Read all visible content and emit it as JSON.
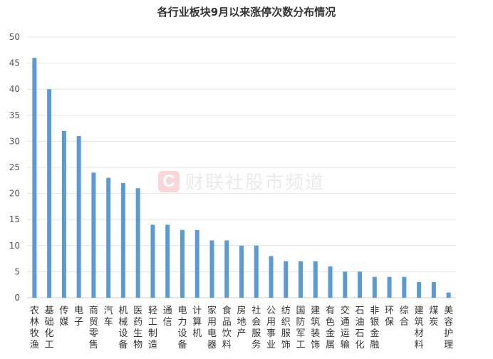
{
  "chart_data": {
    "type": "bar",
    "title": "各行业板块9月以来涨停次数分布情况",
    "xlabel": "",
    "ylabel": "",
    "ylim": [
      0,
      50
    ],
    "yticks": [
      0,
      5,
      10,
      15,
      20,
      25,
      30,
      35,
      40,
      45,
      50
    ],
    "grid": true,
    "legend": "none",
    "bar_color": "#5b9bd5",
    "categories": [
      "农林牧渔",
      "基础化工",
      "传媒",
      "电子",
      "商贸零售",
      "汽车",
      "机械设备",
      "医药生物",
      "轻工制造",
      "通信",
      "电力设备",
      "计算机",
      "家用电器",
      "食品饮料",
      "房地产",
      "社会服务",
      "公用事业",
      "纺织服饰",
      "国防军工",
      "建筑装饰",
      "有色金属",
      "交通运输",
      "石油石化",
      "非银金融",
      "环保",
      "综合",
      "建筑材料",
      "煤炭",
      "美容护理"
    ],
    "values": [
      46,
      40,
      32,
      31,
      24,
      23,
      22,
      21,
      14,
      14,
      13,
      13,
      11,
      11,
      10,
      10,
      8,
      7,
      7,
      7,
      6,
      5,
      5,
      4,
      4,
      4,
      3,
      3,
      1
    ]
  },
  "watermark": {
    "logo_letter": "C",
    "text": "财联社股市频道"
  }
}
